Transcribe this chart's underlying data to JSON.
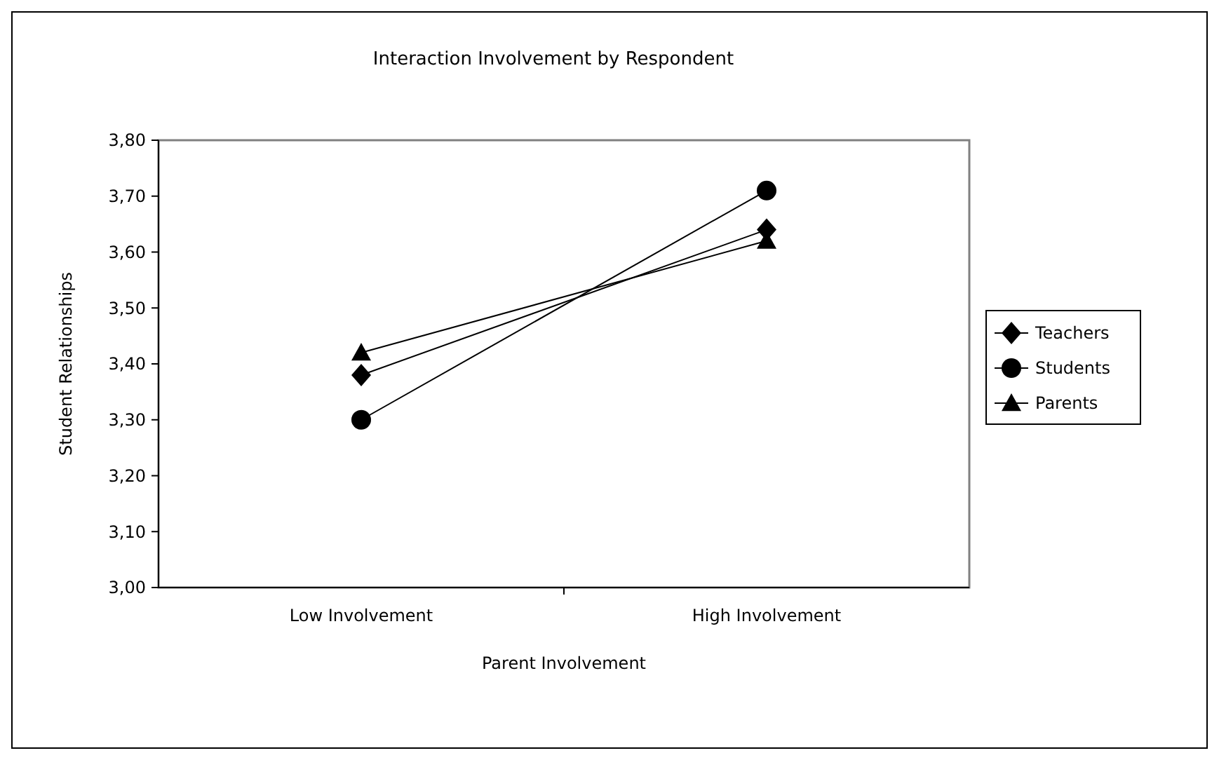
{
  "chart_data": {
    "type": "line",
    "title": "Interaction Involvement by Respondent",
    "xlabel": "Parent Involvement",
    "ylabel": "Student Relationships",
    "categories": [
      "Low Involvement",
      "High Involvement"
    ],
    "series": [
      {
        "name": "Teachers",
        "color": "#000000",
        "marker": "diamond",
        "values": [
          3.38,
          3.64
        ]
      },
      {
        "name": "Students",
        "color": "#000000",
        "marker": "circle",
        "values": [
          3.3,
          3.71
        ]
      },
      {
        "name": "Parents",
        "color": "#000000",
        "marker": "triangle",
        "values": [
          3.42,
          3.62
        ]
      }
    ],
    "ylim": [
      3.0,
      3.8
    ],
    "yticks": [
      {
        "value": 3.0,
        "label": "3,00"
      },
      {
        "value": 3.1,
        "label": "3,10"
      },
      {
        "value": 3.2,
        "label": "3,20"
      },
      {
        "value": 3.3,
        "label": "3,30"
      },
      {
        "value": 3.4,
        "label": "3,40"
      },
      {
        "value": 3.5,
        "label": "3,50"
      },
      {
        "value": 3.6,
        "label": "3,60"
      },
      {
        "value": 3.7,
        "label": "3,70"
      },
      {
        "value": 3.8,
        "label": "3,80"
      }
    ],
    "legend": "right",
    "grid": false,
    "line_style": "solid"
  }
}
